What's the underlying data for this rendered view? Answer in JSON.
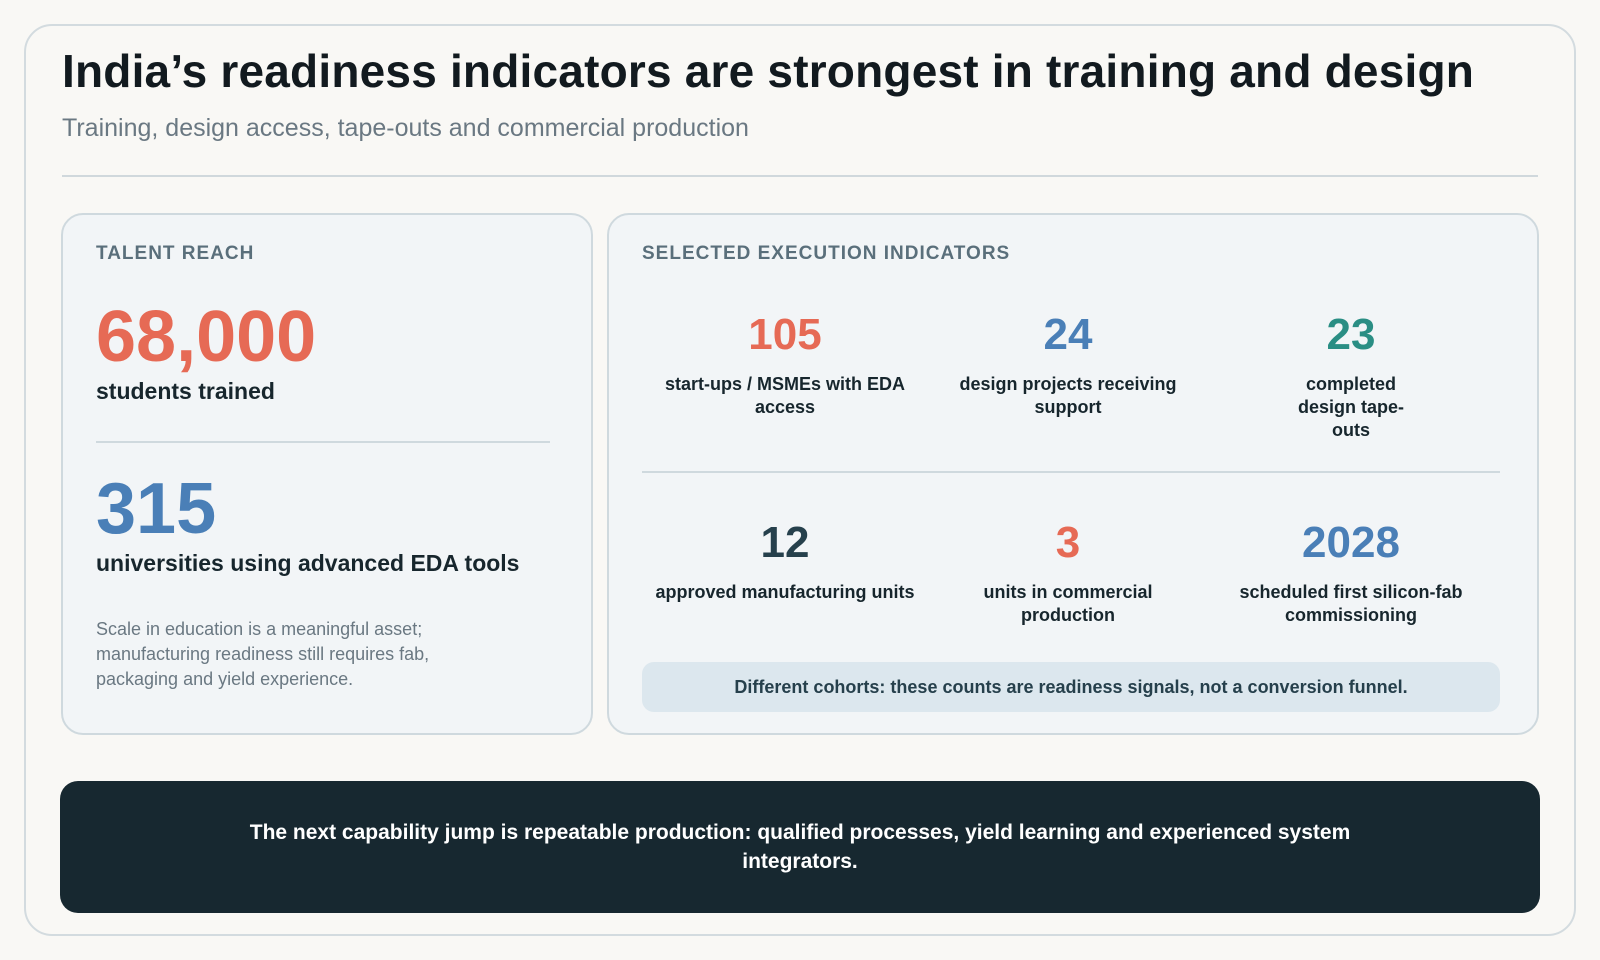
{
  "header": {
    "title": "India’s readiness indicators are strongest in training and design",
    "subtitle": "Training, design access, tape-outs and commercial production"
  },
  "talent": {
    "heading": "TALENT REACH",
    "students_value": "68,000",
    "students_label": "students trained",
    "universities_value": "315",
    "universities_label": "universities using advanced EDA tools",
    "note": "Scale in education is a meaningful asset; manufacturing readiness still requires fab, packaging and yield experience."
  },
  "execution": {
    "heading": "SELECTED EXECUTION INDICATORS",
    "indicators": [
      {
        "value": "105",
        "label": "start-ups / MSMEs with EDA access",
        "color": "#e66a55"
      },
      {
        "value": "24",
        "label": "design projects receiving support",
        "color": "#4a7fb7"
      },
      {
        "value": "23",
        "label": "completed design tape-outs",
        "color": "#2a8e84"
      },
      {
        "value": "12",
        "label": "approved manufacturing units",
        "color": "#26404c"
      },
      {
        "value": "3",
        "label": "units in commercial production",
        "color": "#e66a55"
      },
      {
        "value": "2028",
        "label": "scheduled first silicon-fab commissioning",
        "color": "#4a7fb7"
      }
    ],
    "caveat": "Different cohorts: these counts are readiness signals, not a conversion funnel."
  },
  "banner": {
    "text": "The next capability jump is repeatable production: qualified processes, yield learning and experienced system integrators."
  }
}
